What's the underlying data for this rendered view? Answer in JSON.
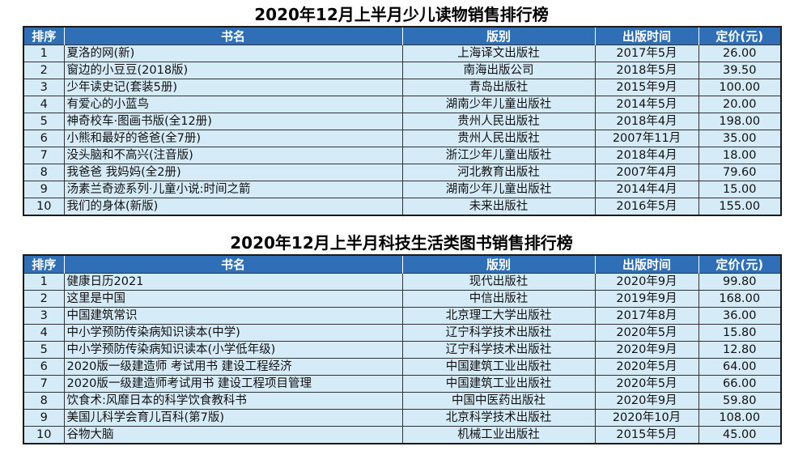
{
  "colors": {
    "header_bg": "#2e6fb7",
    "header_text": "#ffffff",
    "row_bg": "#d6ebf8"
  },
  "tables": [
    {
      "title": "2020年12月上半月少儿读物销售排行榜",
      "headers": [
        "排序",
        "书名",
        "版别",
        "出版时间",
        "定价(元)"
      ],
      "rows": [
        {
          "rank": "1",
          "title": "夏洛的网(新)",
          "publisher": "上海译文出版社",
          "date": "2017年5月",
          "price": "26.00"
        },
        {
          "rank": "2",
          "title": "窗边的小豆豆(2018版)",
          "publisher": "南海出版公司",
          "date": "2018年5月",
          "price": "39.50"
        },
        {
          "rank": "3",
          "title": "少年读史记(套装5册)",
          "publisher": "青岛出版社",
          "date": "2015年9月",
          "price": "100.00"
        },
        {
          "rank": "4",
          "title": "有爱心的小蓝鸟",
          "publisher": "湖南少年儿童出版社",
          "date": "2014年5月",
          "price": "20.00"
        },
        {
          "rank": "5",
          "title": "神奇校车·图画书版(全12册)",
          "publisher": "贵州人民出版社",
          "date": "2018年4月",
          "price": "198.00"
        },
        {
          "rank": "6",
          "title": "小熊和最好的爸爸(全7册)",
          "publisher": "贵州人民出版社",
          "date": "2007年11月",
          "price": "35.00"
        },
        {
          "rank": "7",
          "title": "没头脑和不高兴(注音版)",
          "publisher": "浙江少年儿童出版社",
          "date": "2018年4月",
          "price": "18.00"
        },
        {
          "rank": "8",
          "title": "我爸爸 我妈妈(全2册)",
          "publisher": "河北教育出版社",
          "date": "2007年4月",
          "price": "79.60"
        },
        {
          "rank": "9",
          "title": "汤素兰奇迹系列·儿童小说:时间之箭",
          "publisher": "湖南少年儿童出版社",
          "date": "2014年4月",
          "price": "15.00"
        },
        {
          "rank": "10",
          "title": "我们的身体(新版)",
          "publisher": "未来出版社",
          "date": "2016年5月",
          "price": "155.00"
        }
      ]
    },
    {
      "title": "2020年12月上半月科技生活类图书销售排行榜",
      "headers": [
        "排序",
        "书名",
        "版别",
        "出版时间",
        "定价(元)"
      ],
      "rows": [
        {
          "rank": "1",
          "title": "健康日历2021",
          "publisher": "现代出版社",
          "date": "2020年9月",
          "price": "99.80"
        },
        {
          "rank": "2",
          "title": "这里是中国",
          "publisher": "中信出版社",
          "date": "2019年9月",
          "price": "168.00"
        },
        {
          "rank": "3",
          "title": "中国建筑常识",
          "publisher": "北京理工大学出版社",
          "date": "2017年8月",
          "price": "36.00"
        },
        {
          "rank": "4",
          "title": "中小学预防传染病知识读本(中学)",
          "publisher": "辽宁科学技术出版社",
          "date": "2020年5月",
          "price": "15.80"
        },
        {
          "rank": "5",
          "title": "中小学预防传染病知识读本(小学低年级)",
          "publisher": "辽宁科学技术出版社",
          "date": "2020年9月",
          "price": "12.80"
        },
        {
          "rank": "6",
          "title": "2020版一级建造师 考试用书 建设工程经济",
          "publisher": "中国建筑工业出版社",
          "date": "2020年5月",
          "price": "64.00"
        },
        {
          "rank": "7",
          "title": "2020版一级建造师考试用书 建设工程项目管理",
          "publisher": "中国建筑工业出版社",
          "date": "2020年5月",
          "price": "66.00"
        },
        {
          "rank": "8",
          "title": "饮食术:风靡日本的科学饮食教科书",
          "publisher": "中国中医药出版社",
          "date": "2020年9月",
          "price": "59.80"
        },
        {
          "rank": "9",
          "title": "美国儿科学会育儿百科(第7版)",
          "publisher": "北京科学技术出版社",
          "date": "2020年10月",
          "price": "108.00"
        },
        {
          "rank": "10",
          "title": "谷物大脑",
          "publisher": "机械工业出版社",
          "date": "2015年5月",
          "price": "45.00"
        }
      ]
    }
  ]
}
